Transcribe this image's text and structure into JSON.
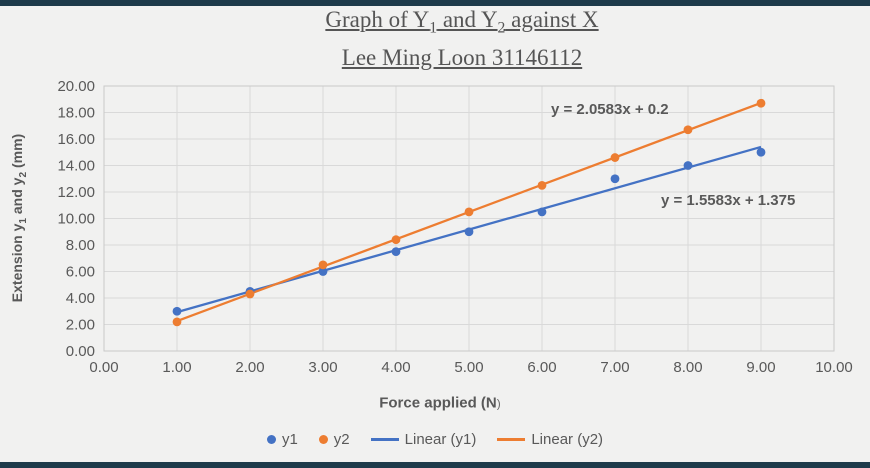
{
  "window": {
    "background": "#f1f1f0",
    "top_bar_color": "#1d3a4a",
    "bottom_bar_color": "#1d3a4a"
  },
  "title": {
    "seg1": "Graph of Y",
    "sub1": "1",
    "seg2": " and Y",
    "sub2": "2",
    "seg3": " against X",
    "line2": "Lee Ming Loon 31146112"
  },
  "axes": {
    "y_title": {
      "seg1": "Extension y",
      "sub1": "1",
      "seg2": " and y",
      "sub2": "2",
      "seg3": " (mm)"
    },
    "x_title": {
      "main": "Force applied (N",
      "paren": ")"
    }
  },
  "annotations": {
    "eq_y2": "y = 2.0583x + 0.2",
    "eq_y1": "y = 1.5583x + 1.375"
  },
  "legend": {
    "items": [
      {
        "label": "y1",
        "marker": "dot",
        "color": "#4472c4"
      },
      {
        "label": "y2",
        "marker": "dot",
        "color": "#ed7d31"
      },
      {
        "label": "Linear (y1)",
        "marker": "line",
        "color": "#4472c4"
      },
      {
        "label": "Linear (y2)",
        "marker": "line",
        "color": "#ed7d31"
      }
    ]
  },
  "chart_data": {
    "type": "scatter",
    "title": "Graph of Y1 and Y2 against X",
    "subtitle": "Lee Ming Loon 31146112",
    "xlabel": "Force applied (N)",
    "ylabel": "Extension y1 and y2 (mm)",
    "xlim": [
      0,
      10
    ],
    "ylim": [
      0,
      20
    ],
    "grid": true,
    "legend_position": "bottom",
    "x_tick_labels": [
      "0.00",
      "1.00",
      "2.00",
      "3.00",
      "4.00",
      "5.00",
      "6.00",
      "7.00",
      "8.00",
      "9.00",
      "10.00"
    ],
    "y_tick_labels": [
      "0.00",
      "2.00",
      "4.00",
      "6.00",
      "8.00",
      "10.00",
      "12.00",
      "14.00",
      "16.00",
      "18.00",
      "20.00"
    ],
    "x": [
      1,
      2,
      3,
      4,
      5,
      6,
      7,
      8,
      9
    ],
    "series": [
      {
        "name": "y1",
        "color": "#4472c4",
        "values": [
          3.0,
          4.5,
          6.0,
          7.5,
          9.0,
          10.5,
          13.0,
          14.0,
          15.0
        ],
        "trendline": {
          "name": "Linear (y1)",
          "slope": 1.5583,
          "intercept": 1.375,
          "equation": "y = 1.5583x + 1.375",
          "x_range": [
            1,
            9
          ]
        }
      },
      {
        "name": "y2",
        "color": "#ed7d31",
        "values": [
          2.2,
          4.3,
          6.5,
          8.4,
          10.5,
          12.5,
          14.6,
          16.7,
          18.7
        ],
        "trendline": {
          "name": "Linear (y2)",
          "slope": 2.0583,
          "intercept": 0.2,
          "equation": "y = 2.0583x + 0.2",
          "x_range": [
            1,
            9
          ]
        }
      }
    ],
    "gridline_color": "#d9d9d9",
    "plot_border_color": "#c9c9c9",
    "tick_label_color": "#595959"
  }
}
